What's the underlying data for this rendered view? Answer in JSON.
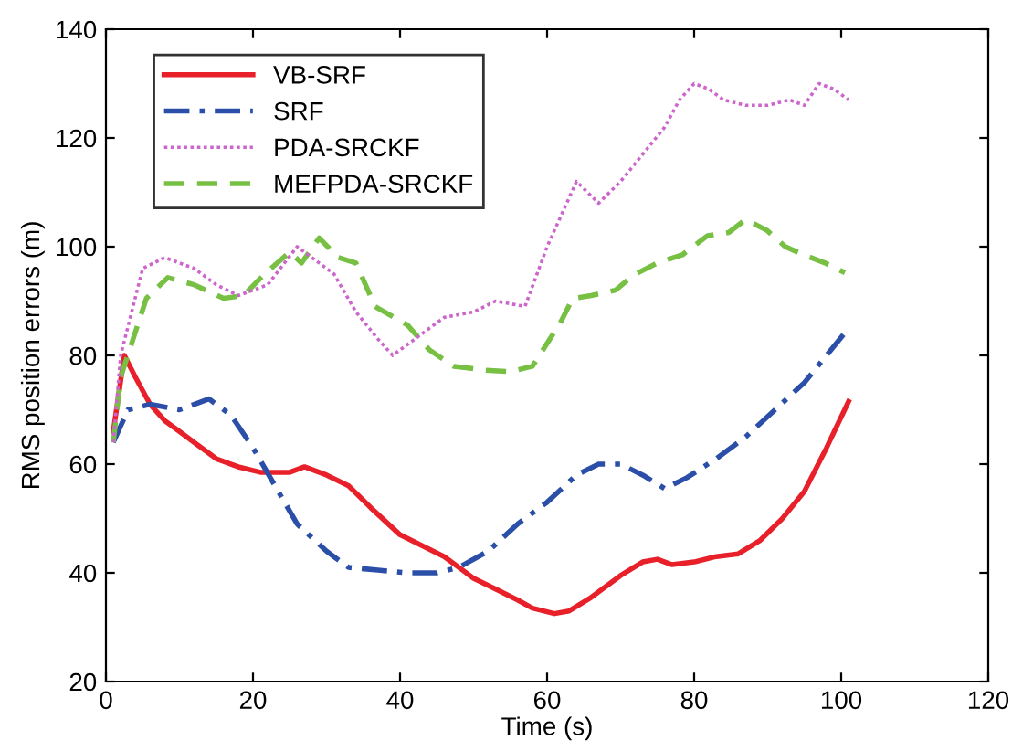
{
  "chart_data": {
    "type": "line",
    "xlabel": "Time (s)",
    "ylabel": "RMS position errors (m)",
    "xlim": [
      0,
      120
    ],
    "xticks": [
      0,
      20,
      40,
      60,
      80,
      100,
      120
    ],
    "ylim": [
      20,
      140
    ],
    "yticks": [
      20,
      40,
      60,
      80,
      100,
      120,
      140
    ],
    "grid": false,
    "legend": "top left",
    "marker": "none",
    "series": [
      {
        "name": "VB-SRF",
        "color": "#e8202a",
        "line_style": "solid",
        "x": [
          1,
          2.5,
          4,
          6,
          8,
          10,
          12,
          15,
          18,
          21,
          25,
          27,
          30,
          33,
          36,
          40,
          43,
          46,
          50,
          53,
          56,
          58,
          61,
          63,
          66,
          70,
          73,
          75,
          77,
          80,
          83,
          86,
          89,
          92,
          95,
          98,
          101
        ],
        "values": [
          66,
          80,
          76,
          71,
          68,
          66,
          64,
          61,
          59.5,
          58.5,
          58.5,
          59.5,
          58,
          56,
          52,
          47,
          45,
          43,
          39,
          37,
          35,
          33.5,
          32.5,
          33,
          35.5,
          39.5,
          42,
          42.5,
          41.5,
          42,
          43,
          43.5,
          46,
          50,
          55,
          63,
          71.5
        ]
      },
      {
        "name": "SRF",
        "color": "#2b4fa8",
        "line_style": "dashdot",
        "x": [
          1,
          3,
          6,
          10,
          14,
          17,
          20,
          23,
          26,
          30,
          33,
          37,
          41,
          45,
          48,
          52,
          56,
          60,
          64,
          67,
          70,
          73,
          76,
          79,
          83,
          87,
          91,
          95,
          98,
          101
        ],
        "values": [
          64,
          70,
          71,
          70,
          72,
          69,
          63,
          56,
          49,
          44,
          41,
          40.5,
          40,
          40,
          41,
          44,
          49,
          53,
          58,
          60,
          60,
          58,
          55.5,
          57.5,
          61,
          65,
          70,
          75,
          80,
          85
        ]
      },
      {
        "name": "PDA-SRCKF",
        "color": "#cc66cc",
        "line_style": "dotted",
        "x": [
          1,
          2,
          5,
          8,
          10,
          12,
          15,
          18,
          22,
          26,
          29,
          31,
          34,
          37,
          39,
          42,
          46,
          50,
          53,
          57,
          60,
          62,
          64,
          67,
          70,
          73,
          76,
          78,
          80,
          82,
          84,
          87,
          90,
          93,
          95,
          97,
          99,
          101
        ],
        "values": [
          64,
          80,
          96,
          98,
          97,
          96,
          93,
          91,
          93,
          100,
          97,
          95,
          88,
          83,
          80,
          83,
          87,
          88,
          90,
          89,
          100,
          106,
          112,
          108,
          112,
          117,
          122,
          127,
          130,
          129,
          127,
          126,
          126,
          127,
          126,
          130,
          129,
          127
        ]
      },
      {
        "name": "MEFPDA-SRCKF",
        "color": "#77c043",
        "line_style": "dashed",
        "x": [
          1,
          2,
          5.5,
          8.4,
          12,
          16,
          18.7,
          21.6,
          25,
          26.6,
          29,
          31.6,
          34,
          36.6,
          41,
          44,
          47.3,
          51.4,
          55,
          58,
          61.8,
          63.5,
          66,
          69.3,
          71.8,
          75,
          78.4,
          81.8,
          84.7,
          87,
          89.9,
          92.4,
          94.9,
          97.8,
          100.5
        ],
        "values": [
          64,
          76,
          90.5,
          94.3,
          93,
          90.5,
          91,
          95,
          99,
          97,
          101.6,
          98,
          97,
          89,
          85.6,
          81,
          78,
          77.3,
          77,
          78,
          86,
          90.5,
          91,
          92,
          94.8,
          97,
          98.5,
          102,
          102.6,
          105,
          103,
          100,
          98.5,
          97,
          95.2
        ]
      }
    ]
  }
}
